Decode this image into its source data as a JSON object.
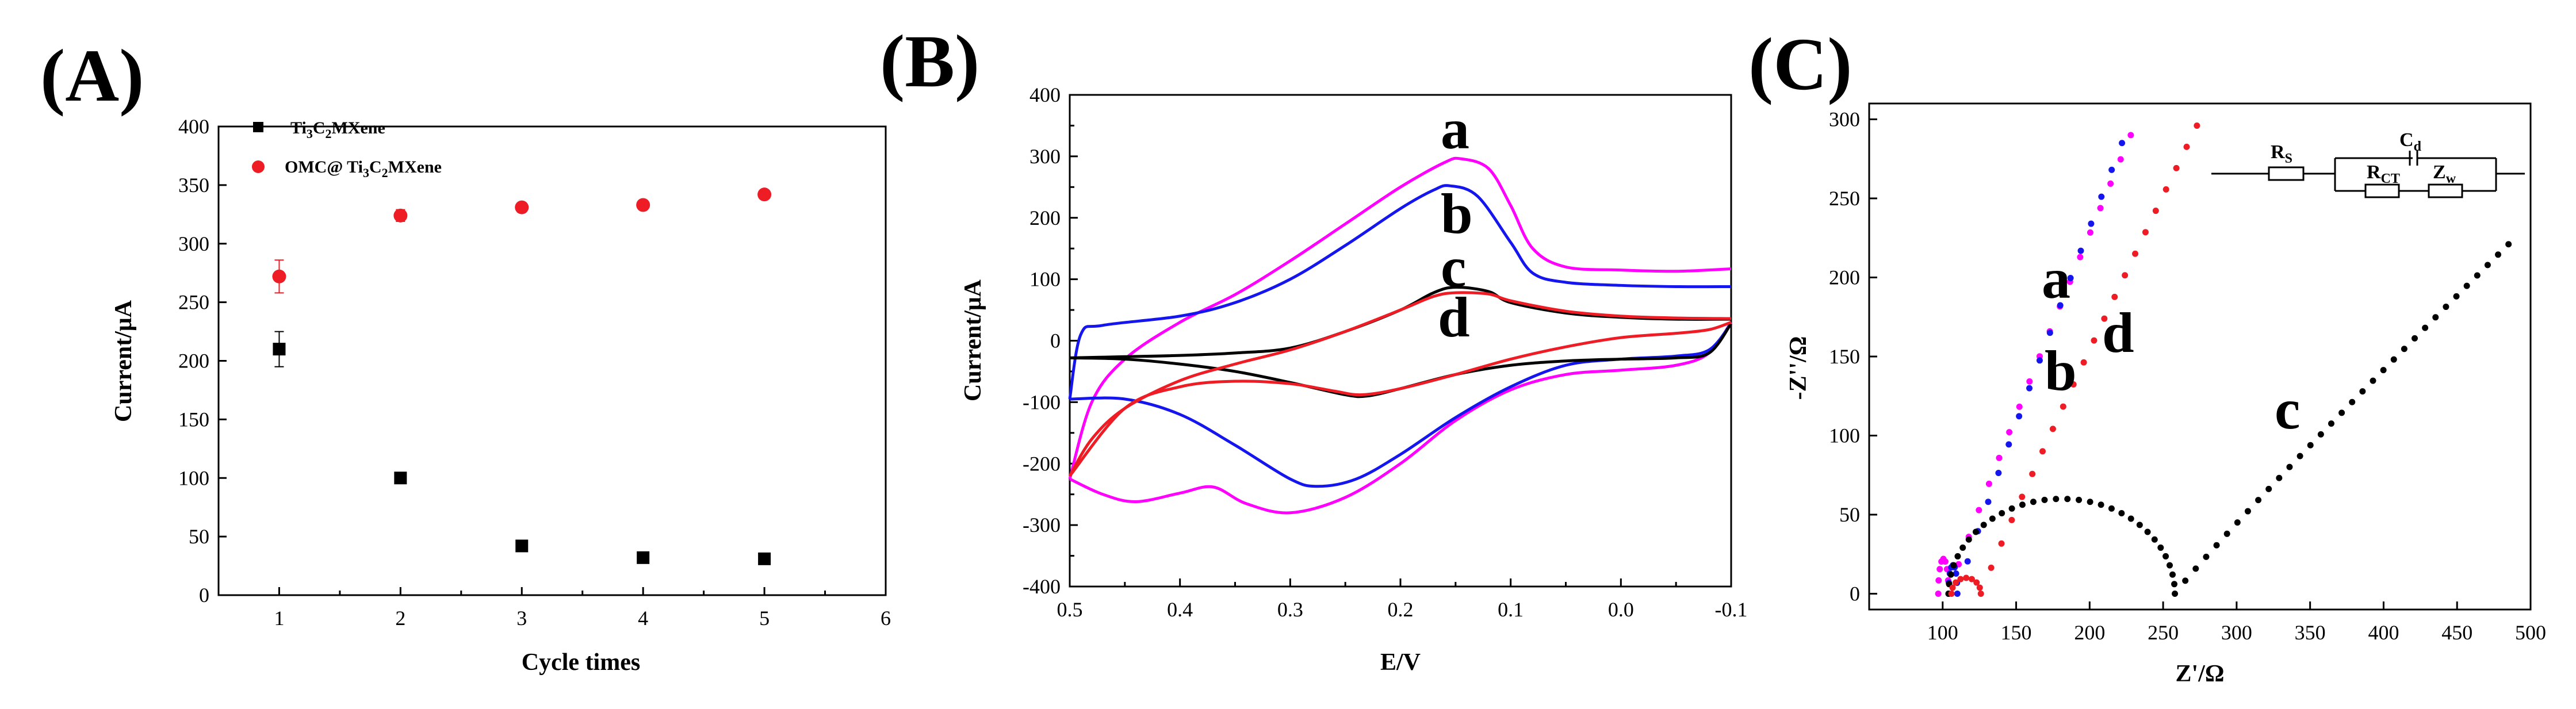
{
  "chart_data": [
    {
      "panel": "(A)",
      "type": "scatter",
      "xlabel": "Cycle times",
      "ylabel": "Current/μA",
      "xlim": [
        0.5,
        6
      ],
      "ylim": [
        0,
        400
      ],
      "xticks": [
        "1",
        "2",
        "3",
        "4",
        "5",
        "6"
      ],
      "yticks": [
        "0",
        "50",
        "100",
        "150",
        "200",
        "250",
        "300",
        "350",
        "400"
      ],
      "legend_position": "top-left",
      "series": [
        {
          "name": "Ti3C2MXene",
          "legend_main": "Ti",
          "legend_parts": [
            {
              "t": "3",
              "s": "sub"
            },
            {
              "t": "C",
              "s": ""
            },
            {
              "t": "2",
              "s": "sub"
            },
            {
              "t": "MXene",
              "s": ""
            }
          ],
          "color": "#000000",
          "marker": "square",
          "x": [
            1,
            2,
            3,
            4,
            5
          ],
          "y": [
            210,
            100,
            42,
            32,
            31
          ],
          "err": [
            15,
            4,
            4,
            2,
            2
          ]
        },
        {
          "name": "OMC@ Ti3C2MXene",
          "legend_main": "OMC@ Ti",
          "legend_parts": [
            {
              "t": "3",
              "s": "sub"
            },
            {
              "t": "C",
              "s": ""
            },
            {
              "t": "2",
              "s": "sub"
            },
            {
              "t": "MXene",
              "s": ""
            }
          ],
          "color": "#ee1c25",
          "marker": "circle",
          "x": [
            1,
            2,
            3,
            4,
            5
          ],
          "y": [
            272,
            324,
            331,
            333,
            342
          ],
          "err": [
            14,
            5,
            4,
            4,
            3
          ]
        }
      ]
    },
    {
      "panel": "(B)",
      "type": "line",
      "xlabel": "E/V",
      "ylabel": "Current/μA",
      "xlim": [
        0.5,
        -0.1
      ],
      "ylim": [
        -400,
        400
      ],
      "xticks": [
        "0.5",
        "0.4",
        "0.3",
        "0.2",
        "0.1",
        "0.0",
        "-0.1"
      ],
      "yticks": [
        "-400",
        "-300",
        "-200",
        "-100",
        "0",
        "100",
        "200",
        "300",
        "400"
      ],
      "curve_labels": [
        "a",
        "b",
        "c",
        "d"
      ],
      "series": [
        {
          "name": "a",
          "color": "#ff00ff",
          "forward": [
            [
              0.5,
              -225
            ],
            [
              0.48,
              -100
            ],
            [
              0.45,
              -30
            ],
            [
              0.4,
              30
            ],
            [
              0.35,
              75
            ],
            [
              0.3,
              130
            ],
            [
              0.25,
              190
            ],
            [
              0.2,
              250
            ],
            [
              0.16,
              290
            ],
            [
              0.145,
              296
            ],
            [
              0.12,
              280
            ],
            [
              0.1,
              220
            ],
            [
              0.08,
              150
            ],
            [
              0.05,
              120
            ],
            [
              0.0,
              115
            ],
            [
              -0.05,
              113
            ],
            [
              -0.1,
              117
            ]
          ],
          "reverse": [
            [
              -0.1,
              30
            ],
            [
              -0.08,
              -20
            ],
            [
              -0.05,
              -40
            ],
            [
              0.0,
              -48
            ],
            [
              0.05,
              -55
            ],
            [
              0.1,
              -80
            ],
            [
              0.15,
              -130
            ],
            [
              0.2,
              -200
            ],
            [
              0.25,
              -255
            ],
            [
              0.3,
              -280
            ],
            [
              0.34,
              -265
            ],
            [
              0.37,
              -238
            ],
            [
              0.4,
              -248
            ],
            [
              0.44,
              -262
            ],
            [
              0.47,
              -250
            ],
            [
              0.5,
              -225
            ]
          ]
        },
        {
          "name": "b",
          "color": "#1515ee",
          "forward": [
            [
              0.5,
              -95
            ],
            [
              0.49,
              10
            ],
            [
              0.47,
              25
            ],
            [
              0.4,
              40
            ],
            [
              0.35,
              62
            ],
            [
              0.3,
              100
            ],
            [
              0.25,
              155
            ],
            [
              0.2,
              215
            ],
            [
              0.17,
              245
            ],
            [
              0.155,
              252
            ],
            [
              0.13,
              235
            ],
            [
              0.1,
              160
            ],
            [
              0.08,
              110
            ],
            [
              0.05,
              95
            ],
            [
              0.0,
              90
            ],
            [
              -0.05,
              88
            ],
            [
              -0.1,
              88
            ]
          ],
          "reverse": [
            [
              -0.1,
              28
            ],
            [
              -0.08,
              -15
            ],
            [
              -0.05,
              -25
            ],
            [
              0.0,
              -30
            ],
            [
              0.05,
              -40
            ],
            [
              0.1,
              -75
            ],
            [
              0.15,
              -125
            ],
            [
              0.2,
              -185
            ],
            [
              0.24,
              -225
            ],
            [
              0.275,
              -237
            ],
            [
              0.3,
              -225
            ],
            [
              0.35,
              -170
            ],
            [
              0.4,
              -120
            ],
            [
              0.45,
              -95
            ],
            [
              0.5,
              -95
            ]
          ]
        },
        {
          "name": "c",
          "color": "#000000",
          "forward": [
            [
              0.5,
              -28
            ],
            [
              0.45,
              -26
            ],
            [
              0.4,
              -24
            ],
            [
              0.35,
              -20
            ],
            [
              0.3,
              -12
            ],
            [
              0.25,
              15
            ],
            [
              0.2,
              50
            ],
            [
              0.17,
              78
            ],
            [
              0.15,
              87
            ],
            [
              0.12,
              80
            ],
            [
              0.1,
              62
            ],
            [
              0.05,
              45
            ],
            [
              0.0,
              38
            ],
            [
              -0.05,
              35
            ],
            [
              -0.1,
              35
            ]
          ],
          "reverse": [
            [
              -0.1,
              28
            ],
            [
              -0.08,
              -20
            ],
            [
              -0.05,
              -28
            ],
            [
              0.0,
              -30
            ],
            [
              0.05,
              -33
            ],
            [
              0.1,
              -40
            ],
            [
              0.15,
              -55
            ],
            [
              0.2,
              -78
            ],
            [
              0.23,
              -90
            ],
            [
              0.25,
              -88
            ],
            [
              0.3,
              -68
            ],
            [
              0.35,
              -50
            ],
            [
              0.4,
              -38
            ],
            [
              0.45,
              -30
            ],
            [
              0.5,
              -28
            ]
          ]
        },
        {
          "name": "d",
          "color": "#ee1c25",
          "forward": [
            [
              0.5,
              -220
            ],
            [
              0.48,
              -160
            ],
            [
              0.45,
              -110
            ],
            [
              0.4,
              -65
            ],
            [
              0.35,
              -38
            ],
            [
              0.3,
              -15
            ],
            [
              0.25,
              15
            ],
            [
              0.2,
              50
            ],
            [
              0.17,
              72
            ],
            [
              0.15,
              78
            ],
            [
              0.12,
              76
            ],
            [
              0.1,
              65
            ],
            [
              0.05,
              48
            ],
            [
              0.0,
              40
            ],
            [
              -0.05,
              37
            ],
            [
              -0.1,
              36
            ]
          ],
          "reverse": [
            [
              -0.1,
              30
            ],
            [
              -0.08,
              18
            ],
            [
              -0.05,
              12
            ],
            [
              0.0,
              5
            ],
            [
              0.05,
              -10
            ],
            [
              0.1,
              -30
            ],
            [
              0.15,
              -55
            ],
            [
              0.2,
              -78
            ],
            [
              0.235,
              -88
            ],
            [
              0.26,
              -82
            ],
            [
              0.3,
              -70
            ],
            [
              0.35,
              -66
            ],
            [
              0.4,
              -75
            ],
            [
              0.45,
              -110
            ],
            [
              0.5,
              -220
            ]
          ]
        }
      ]
    },
    {
      "panel": "(C)",
      "type": "scatter",
      "xlabel": "Z'/Ω",
      "ylabel": "-Z''/Ω",
      "xlim": [
        50,
        500
      ],
      "ylim": [
        -10,
        310
      ],
      "xticks": [
        "100",
        "150",
        "200",
        "250",
        "300",
        "350",
        "400",
        "450",
        "500"
      ],
      "yticks": [
        "0",
        "50",
        "100",
        "150",
        "200",
        "250",
        "300"
      ],
      "curve_labels": [
        "a",
        "b",
        "c",
        "d"
      ],
      "circuit": {
        "rs": "R",
        "rs_sub": "S",
        "cd": "C",
        "cd_sub": "d",
        "rct": "R",
        "rct_sub": "CT",
        "zw": "Z",
        "zw_sub": "w"
      },
      "series": [
        {
          "name": "a",
          "color": "#ff00ff",
          "semicircle": {
            "x0": 97,
            "x1": 104,
            "h": 22
          },
          "line": {
            "x0": 104,
            "x1": 228,
            "y1": 290
          }
        },
        {
          "name": "b",
          "color": "#1515ee",
          "semicircle": {
            "x0": 104,
            "x1": 110,
            "h": 18
          },
          "line": {
            "x0": 110,
            "x1": 222,
            "y1": 285
          }
        },
        {
          "name": "c",
          "color": "#000000",
          "semicircle": {
            "x0": 104,
            "x1": 258,
            "h": 60
          },
          "line": {
            "x0": 258,
            "x1": 485,
            "y1": 221
          }
        },
        {
          "name": "d",
          "color": "#ee1c25",
          "semicircle": {
            "x0": 106,
            "x1": 126,
            "h": 10
          },
          "line": {
            "x0": 126,
            "x1": 273,
            "y1": 296
          }
        }
      ]
    }
  ]
}
